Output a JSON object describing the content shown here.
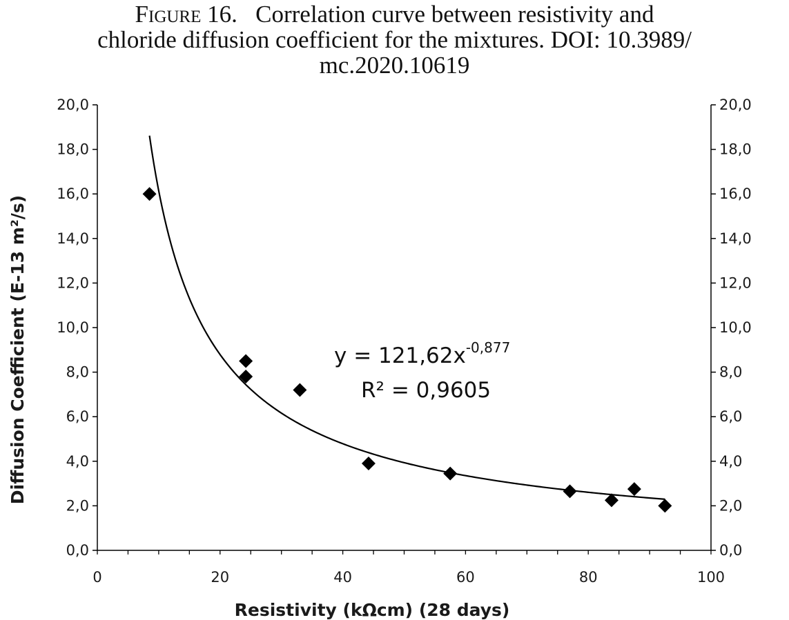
{
  "caption": {
    "figure_label": "Figure 16.",
    "line1_text": "Correlation curve between resistivity and",
    "line2": "chloride diffusion coefficient for the mixtures. DOI: 10.3989/",
    "line3": "mc.2020.10619"
  },
  "chart_data": {
    "type": "scatter",
    "xlabel": "Resistivity (kΩcm)  (28 days)",
    "ylabel": "Diffusion Coefficient (E-13 m²/s)",
    "xlim": [
      0,
      100
    ],
    "ylim": [
      0,
      20
    ],
    "x_ticks": [
      "0",
      "20",
      "40",
      "60",
      "80",
      "100"
    ],
    "y_ticks": [
      "0,0",
      "2,0",
      "4,0",
      "6,0",
      "8,0",
      "10,0",
      "12,0",
      "14,0",
      "16,0",
      "18,0",
      "20,0"
    ],
    "secondary_y_axis": true,
    "grid": false,
    "marker": "diamond",
    "points": [
      {
        "x": 8.5,
        "y": 16.0
      },
      {
        "x": 24.2,
        "y": 8.5
      },
      {
        "x": 24.2,
        "y": 7.8
      },
      {
        "x": 33.0,
        "y": 7.2
      },
      {
        "x": 44.2,
        "y": 3.9
      },
      {
        "x": 57.5,
        "y": 3.45
      },
      {
        "x": 77.0,
        "y": 2.65
      },
      {
        "x": 83.8,
        "y": 2.25
      },
      {
        "x": 87.5,
        "y": 2.75
      },
      {
        "x": 92.5,
        "y": 2.0
      }
    ],
    "trendline": {
      "type": "power",
      "a": 121.62,
      "b": -0.877,
      "x_range": [
        8.5,
        92.5
      ],
      "equation_main": "y = 121,62x",
      "equation_exponent": "-0,877",
      "r2_text": "R² = 0,9605"
    },
    "colors": {
      "marker": "#000000",
      "line": "#000000",
      "axis": "#000000"
    }
  }
}
